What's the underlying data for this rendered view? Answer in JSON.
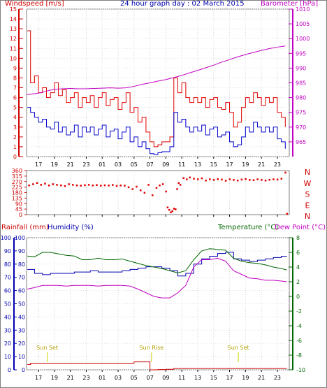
{
  "title": "24 hour graph day : 02 March 2015",
  "labels": {
    "windspeed": "Windspeed [m/s]",
    "barometer": "Barometer [hPa]",
    "rainfall": "Rainfall (mm)",
    "humidity": "Humidity (%)",
    "temperature": "Temperature (°C)",
    "dewpoint": "Dew Point (°C)",
    "sunset": "Sun Set",
    "sunrise": "Sun Rise"
  },
  "colors": {
    "windspeed": "#d00000",
    "gust": "#e00000",
    "avgwind": "#0000cc",
    "barometer": "#c000c0",
    "winddir": "#e00000",
    "humidity": "#0000b0",
    "temperature": "#006600",
    "dewpoint": "#c000c0",
    "rainfall": "#cc0000",
    "sunmark": "#d0d000",
    "title": "#0000aa"
  },
  "chart_data": [
    {
      "type": "line",
      "name": "wind-barometer",
      "x_ticks": [
        "17",
        "19",
        "21",
        "23",
        "01",
        "03",
        "05",
        "07",
        "09",
        "11",
        "13",
        "15",
        "17",
        "19",
        "21",
        "23"
      ],
      "x_tick_hours": [
        17,
        19,
        21,
        23,
        25,
        27,
        29,
        31,
        33,
        35,
        37,
        39,
        41,
        43,
        45,
        47
      ],
      "x_range_hours": [
        15.5,
        48.5
      ],
      "left_axis": {
        "label": "Windspeed [m/s]",
        "range": [
          0,
          15
        ],
        "ticks": [
          0,
          1,
          2,
          3,
          4,
          5,
          6,
          7,
          8,
          9,
          10,
          11,
          12,
          13,
          14,
          15
        ]
      },
      "right_axis": {
        "label": "Barometer [hPa]",
        "range": [
          960,
          1010
        ],
        "ticks": [
          965,
          970,
          975,
          980,
          985,
          990,
          995,
          1000,
          1005,
          1010
        ]
      },
      "series": [
        {
          "hours": [
            15.6,
            16.0,
            16.5,
            17.0,
            17.5,
            18.0,
            18.5,
            19.0,
            19.5,
            20.0,
            20.5,
            21.0,
            21.5,
            22.0,
            22.5,
            23.0,
            23.5,
            24.0,
            24.5,
            25.0,
            25.5,
            26.0,
            26.5,
            27.0,
            27.5,
            28.0,
            28.5,
            29.0,
            29.5,
            30.0,
            30.5,
            31.0,
            31.5,
            32.0,
            32.5,
            33.0,
            33.5,
            34.0,
            34.5,
            35.0,
            35.5,
            36.0,
            36.5,
            37.0,
            37.5,
            38.0,
            38.5,
            39.0,
            39.5,
            40.0,
            40.5,
            41.0,
            41.5,
            42.0,
            42.5,
            43.0,
            43.5,
            44.0,
            44.5,
            45.0,
            45.5,
            46.0,
            46.5,
            47.0,
            47.5,
            48.0
          ],
          "values": [
            12.8,
            7.5,
            8.2,
            6.5,
            7.0,
            6.0,
            6.5,
            7.5,
            6.2,
            6.8,
            5.5,
            6.0,
            6.5,
            5.0,
            6.0,
            5.5,
            6.2,
            5.0,
            6.0,
            6.5,
            5.2,
            5.8,
            6.0,
            4.8,
            5.5,
            6.5,
            4.5,
            5.0,
            3.5,
            4.0,
            2.5,
            1.5,
            1.0,
            1.2,
            1.5,
            1.5,
            2.0,
            8.0,
            6.5,
            7.5,
            6.0,
            5.5,
            6.0,
            5.5,
            6.0,
            5.0,
            5.8,
            6.0,
            5.0,
            4.8,
            5.5,
            4.5,
            3.0,
            3.5,
            5.0,
            6.0,
            5.5,
            6.5,
            6.0,
            5.2,
            6.0,
            5.5,
            6.0,
            4.5,
            4.0,
            3.0
          ]
        },
        {
          "hours": [
            15.6,
            16.0,
            16.5,
            17.0,
            17.5,
            18.0,
            18.5,
            19.0,
            19.5,
            20.0,
            20.5,
            21.0,
            21.5,
            22.0,
            22.5,
            23.0,
            23.5,
            24.0,
            24.5,
            25.0,
            25.5,
            26.0,
            26.5,
            27.0,
            27.5,
            28.0,
            28.5,
            29.0,
            29.5,
            30.0,
            30.5,
            31.0,
            31.5,
            32.0,
            32.5,
            33.0,
            33.5,
            34.0,
            34.5,
            35.0,
            35.5,
            36.0,
            36.5,
            37.0,
            37.5,
            38.0,
            38.5,
            39.0,
            39.5,
            40.0,
            40.5,
            41.0,
            41.5,
            42.0,
            42.5,
            43.0,
            43.5,
            44.0,
            44.5,
            45.0,
            45.5,
            46.0,
            46.5,
            47.0,
            47.5,
            48.0
          ],
          "values": [
            5.0,
            4.5,
            4.0,
            3.5,
            3.8,
            3.0,
            2.8,
            3.5,
            2.5,
            3.0,
            2.2,
            2.5,
            3.2,
            2.0,
            3.0,
            2.5,
            3.0,
            2.2,
            2.8,
            3.2,
            2.0,
            2.6,
            2.8,
            1.8,
            2.5,
            3.0,
            1.5,
            2.0,
            1.0,
            1.5,
            0.8,
            0.3,
            0.2,
            0.4,
            0.5,
            0.5,
            1.0,
            4.5,
            3.5,
            3.8,
            3.0,
            2.5,
            3.0,
            2.6,
            3.2,
            2.2,
            2.8,
            3.0,
            2.0,
            2.2,
            2.5,
            1.5,
            1.0,
            1.2,
            2.0,
            3.0,
            2.5,
            3.5,
            3.0,
            2.5,
            3.0,
            2.5,
            3.0,
            1.8,
            1.5,
            0.8
          ]
        },
        {
          "hours": [
            15.6,
            17.0,
            18.0,
            19.0,
            20.0,
            21.0,
            22.0,
            23.0,
            24.0,
            25.0,
            26.0,
            27.0,
            28.0,
            29.0,
            30.0,
            31.0,
            32.0,
            33.0,
            34.0,
            35.0,
            36.0,
            37.0,
            38.0,
            39.0,
            40.0,
            41.0,
            42.0,
            43.0,
            44.0,
            45.0,
            46.0,
            47.0,
            48.0
          ],
          "values": [
            981.0,
            981.5,
            982.2,
            982.8,
            983.0,
            983.1,
            983.0,
            983.0,
            983.1,
            983.2,
            983.3,
            983.2,
            983.3,
            983.8,
            984.5,
            985.0,
            985.6,
            986.1,
            986.8,
            987.5,
            988.4,
            989.2,
            990.1,
            991.0,
            992.0,
            992.9,
            993.8,
            994.6,
            995.3,
            996.0,
            996.6,
            997.1,
            997.5
          ]
        }
      ]
    },
    {
      "type": "scatter",
      "name": "wind-direction",
      "y_range": [
        0,
        360
      ],
      "y_ticks": [
        0,
        45,
        90,
        135,
        180,
        225,
        270,
        315,
        360
      ],
      "compass": [
        "N",
        "W",
        "S",
        "E",
        "N"
      ],
      "series": [
        {
          "hours": [
            15.8,
            16.3,
            16.8,
            17.3,
            17.8,
            18.3,
            18.8,
            19.3,
            19.8,
            20.3,
            20.8,
            21.3,
            21.8,
            22.3,
            22.8,
            23.3,
            23.8,
            24.3,
            24.8,
            25.3,
            25.8,
            26.3,
            26.8,
            27.3,
            27.8,
            28.3,
            28.8,
            29.3,
            29.8,
            30.3,
            30.8,
            31.3,
            31.8,
            32.2,
            32.6,
            33.0,
            33.2,
            33.4,
            33.6,
            33.8,
            34.0,
            34.2,
            34.4,
            34.6,
            34.8,
            35.2,
            35.6,
            36.0,
            36.5,
            37.0,
            37.5,
            38.0,
            38.5,
            39.0,
            39.5,
            40.0,
            40.5,
            41.0,
            41.5,
            42.0,
            42.5,
            43.0,
            43.5,
            44.0,
            44.5,
            45.0,
            45.5,
            46.0,
            46.5,
            47.0,
            47.5,
            48.0,
            48.2
          ],
          "values": [
            240,
            250,
            260,
            245,
            255,
            240,
            250,
            245,
            240,
            235,
            250,
            245,
            240,
            238,
            242,
            245,
            240,
            243,
            238,
            241,
            239,
            244,
            236,
            240,
            238,
            225,
            210,
            230,
            200,
            180,
            245,
            160,
            220,
            240,
            250,
            190,
            60,
            40,
            20,
            30,
            50,
            45,
            210,
            260,
            245,
            300,
            290,
            305,
            295,
            290,
            298,
            280,
            290,
            285,
            292,
            288,
            278,
            290,
            285,
            280,
            288,
            292,
            285,
            283,
            290,
            285,
            280,
            286,
            290,
            288,
            295,
            345,
            8
          ]
        }
      ]
    },
    {
      "type": "line",
      "name": "humidity-temperature-rainfall",
      "axes": {
        "rainfall": {
          "label": "Rainfall (mm)",
          "range": [
            0,
            100
          ],
          "ticks": [
            0,
            10,
            20,
            30,
            40,
            50,
            60,
            70,
            80,
            90,
            100
          ]
        },
        "humidity": {
          "label": "Humidity (%)",
          "range": [
            0,
            100
          ],
          "ticks": [
            0,
            10,
            20,
            30,
            40,
            50,
            60,
            70,
            80,
            90,
            100
          ]
        },
        "temperature": {
          "label": "Temperature (°C)",
          "range": [
            -10,
            8
          ],
          "ticks": [
            -10,
            -8,
            -6,
            -4,
            -2,
            0,
            2,
            4,
            6,
            8
          ]
        }
      },
      "series": [
        {
          "hours": [
            15.6,
            16.5,
            17.5,
            18.5,
            19.5,
            20.5,
            21.5,
            22.5,
            23.5,
            24.5,
            25.5,
            26.5,
            27.5,
            28.5,
            29.5,
            30.5,
            31.5,
            32.5,
            33.5,
            34.5,
            35.5,
            36.5,
            37.5,
            38.5,
            39.5,
            40.5,
            41.5,
            42.5,
            43.5,
            44.5,
            45.5,
            46.5,
            47.5,
            48.2
          ],
          "values": [
            76,
            73,
            72,
            73,
            73,
            73,
            74,
            74,
            75,
            74,
            74,
            74,
            75,
            76,
            77,
            78,
            78,
            77,
            75,
            71,
            73,
            80,
            84,
            86,
            88,
            89,
            84,
            83,
            82,
            83,
            84,
            85,
            86,
            86
          ]
        },
        {
          "hours": [
            15.6,
            16.5,
            17.5,
            18.5,
            19.5,
            20.5,
            21.5,
            22.5,
            23.5,
            24.5,
            25.5,
            26.5,
            27.5,
            28.5,
            29.5,
            30.5,
            31.5,
            32.5,
            33.5,
            34.5,
            35.5,
            36.5,
            37.5,
            38.5,
            39.5,
            40.5,
            41.5,
            42.5,
            43.5,
            44.5,
            45.5,
            46.5,
            47.5,
            48.2
          ],
          "values": [
            5.5,
            5.4,
            6.0,
            6.0,
            5.8,
            5.6,
            5.5,
            5.0,
            5.0,
            5.2,
            5.0,
            5.0,
            5.1,
            4.8,
            4.5,
            4.2,
            4.0,
            3.8,
            3.5,
            3.2,
            3.5,
            5.0,
            6.2,
            6.5,
            6.4,
            6.3,
            5.2,
            4.8,
            4.6,
            4.5,
            4.3,
            4.0,
            3.8,
            3.6
          ]
        },
        {
          "hours": [
            15.6,
            16.5,
            17.5,
            18.5,
            19.5,
            20.5,
            21.5,
            22.5,
            23.5,
            24.5,
            25.5,
            26.5,
            27.5,
            28.5,
            29.5,
            30.5,
            31.5,
            32.5,
            33.5,
            34.5,
            35.5,
            36.5,
            37.5,
            38.5,
            39.5,
            40.5,
            41.5,
            42.5,
            43.5,
            44.5,
            45.5,
            46.5,
            47.5,
            48.2
          ],
          "values": [
            1.0,
            1.2,
            1.5,
            1.5,
            1.5,
            1.4,
            1.5,
            1.5,
            1.5,
            1.4,
            1.5,
            1.5,
            1.5,
            1.4,
            1.0,
            0.5,
            0.0,
            -0.2,
            -0.2,
            0.5,
            1.5,
            4.0,
            5.0,
            5.0,
            5.2,
            4.8,
            3.5,
            3.0,
            2.5,
            2.4,
            2.2,
            2.2,
            2.1,
            2.0
          ]
        },
        {
          "hours": [
            15.6,
            16.0,
            17.0,
            18.0,
            19.0,
            20.0,
            21.0,
            22.0,
            23.0,
            24.0,
            25.0,
            26.0,
            27.0,
            28.0,
            29.0,
            30.0,
            30.99,
            31.0,
            31.5,
            32.0,
            33.0,
            34.0,
            35.0,
            36.0,
            37.0,
            38.0,
            39.0,
            40.0,
            41.0,
            42.0,
            43.0,
            44.0,
            45.0,
            46.0,
            47.0,
            48.0,
            48.2
          ],
          "values": [
            4.0,
            5.0,
            5.0,
            5.0,
            5.0,
            5.0,
            5.0,
            5.0,
            5.0,
            5.0,
            5.0,
            5.0,
            5.0,
            5.0,
            6.0,
            6.0,
            6.0,
            0.0,
            0.0,
            0.2,
            0.4,
            1.0,
            1.0,
            1.0,
            1.0,
            1.0,
            1.0,
            1.0,
            1.0,
            1.0,
            1.0,
            1.0,
            1.0,
            1.0,
            1.0,
            1.0,
            1.0
          ]
        }
      ],
      "annotations": [
        {
          "text": "Sun Set",
          "hours": 18.1
        },
        {
          "text": "Sun Rise",
          "hours": 31.2
        },
        {
          "text": "Sun Set",
          "hours": 42.1
        }
      ]
    }
  ]
}
